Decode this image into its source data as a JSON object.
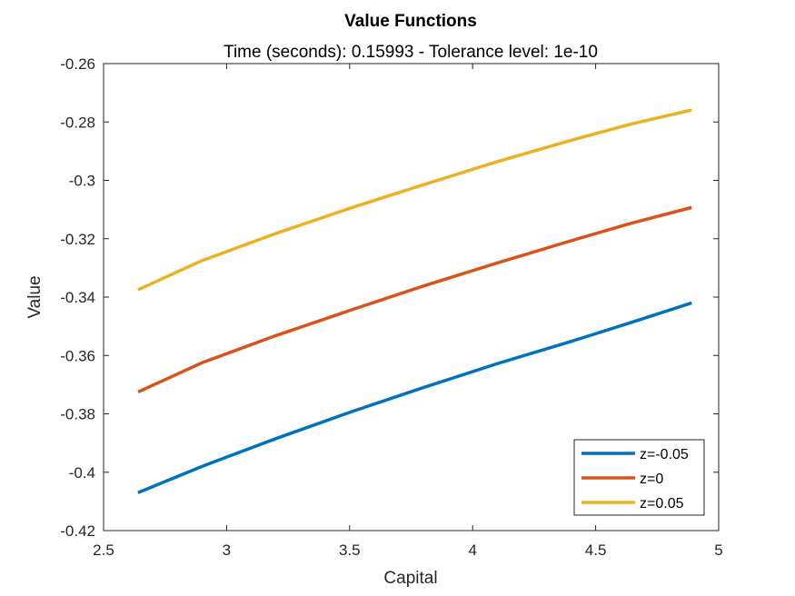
{
  "chart_data": {
    "type": "line",
    "title": "Value Functions",
    "subtitle": "Time (seconds): 0.15993 - Tolerance level: 1e-10",
    "xlabel": "Capital",
    "ylabel": "Value",
    "xlim": [
      2.5,
      5
    ],
    "ylim": [
      -0.42,
      -0.26
    ],
    "xticks": [
      2.5,
      3,
      3.5,
      4,
      4.5,
      5
    ],
    "xtick_labels": [
      "2.5",
      "3",
      "3.5",
      "4",
      "4.5",
      "5"
    ],
    "yticks": [
      -0.42,
      -0.4,
      -0.38,
      -0.36,
      -0.34,
      -0.32,
      -0.3,
      -0.28,
      -0.26
    ],
    "ytick_labels": [
      "-0.42",
      "-0.4",
      "-0.38",
      "-0.36",
      "-0.34",
      "-0.32",
      "-0.3",
      "-0.28",
      "-0.26"
    ],
    "grid": false,
    "legend_location": "bottom-right",
    "x": [
      2.64,
      2.9,
      3.2,
      3.5,
      3.8,
      4.1,
      4.4,
      4.64,
      4.89
    ],
    "series": [
      {
        "name": "z=-0.05",
        "color": "#0072BD",
        "values": [
          -0.407,
          -0.398,
          -0.3885,
          -0.3795,
          -0.371,
          -0.3628,
          -0.3552,
          -0.3488,
          -0.342
        ]
      },
      {
        "name": "z=0",
        "color": "#D95319",
        "values": [
          -0.3725,
          -0.3625,
          -0.3532,
          -0.3446,
          -0.3362,
          -0.3283,
          -0.3207,
          -0.3148,
          -0.3093
        ]
      },
      {
        "name": "z=0.05",
        "color": "#EDB120",
        "values": [
          -0.3375,
          -0.3275,
          -0.3182,
          -0.3096,
          -0.3015,
          -0.2936,
          -0.2863,
          -0.2808,
          -0.2759
        ]
      }
    ]
  }
}
